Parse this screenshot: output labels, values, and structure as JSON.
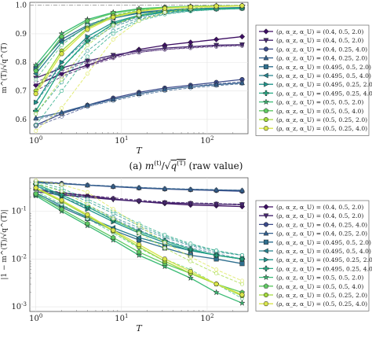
{
  "chart_data": [
    {
      "type": "line",
      "panel": "a",
      "caption": "(a) m^(t)/√q^(T) (raw value)",
      "ylabel": "m^(T)/√q^(T)",
      "xlabel": "T",
      "xscale": "log",
      "xlim": [
        0.85,
        300
      ],
      "ylim": [
        0.55,
        1.01
      ],
      "xticks": [
        {
          "v": 1,
          "label": "10^0"
        },
        {
          "v": 10,
          "label": "10^1"
        },
        {
          "v": 100,
          "label": "10^2"
        }
      ],
      "yticks": [
        0.6,
        0.7,
        0.8,
        0.9,
        1.0
      ],
      "ref_line": 1.0,
      "grid": true,
      "x": [
        1,
        2,
        4,
        8,
        16,
        32,
        64,
        128,
        256
      ],
      "series": [
        {
          "name": "(ρ, α_z, α_U) = (0.4, 0.5, 2.0)",
          "solid": [
            0.72,
            0.76,
            0.79,
            0.82,
            0.845,
            0.86,
            0.87,
            0.88,
            0.89
          ],
          "dashed": [
            0.7,
            0.75,
            0.785,
            0.815,
            0.835,
            0.845,
            0.852,
            0.857,
            0.86
          ]
        },
        {
          "name": "(ρ, α_z, α_U) = (0.4, 0.5, 2.0)",
          "solid": [
            0.745,
            0.78,
            0.805,
            0.825,
            0.84,
            0.85,
            0.855,
            0.86,
            0.862
          ],
          "dashed": [
            0.73,
            0.77,
            0.8,
            0.82,
            0.835,
            0.845,
            0.85,
            0.855,
            0.858
          ]
        },
        {
          "name": "(ρ, α_z, α_U) = (0.4, 0.25, 4.0)",
          "solid": [
            0.58,
            0.62,
            0.65,
            0.675,
            0.695,
            0.71,
            0.72,
            0.73,
            0.74
          ],
          "dashed": [
            0.575,
            0.61,
            0.645,
            0.67,
            0.69,
            0.705,
            0.715,
            0.725,
            0.732
          ]
        },
        {
          "name": "(ρ, α_z, α_U) = (0.4, 0.25, 2.0)",
          "solid": [
            0.605,
            0.625,
            0.65,
            0.67,
            0.69,
            0.705,
            0.715,
            0.722,
            0.728
          ],
          "dashed": [
            0.6,
            0.62,
            0.645,
            0.665,
            0.685,
            0.7,
            0.71,
            0.718,
            0.725
          ]
        },
        {
          "name": "(ρ, α_z, α_U) = (0.495, 0.5, 2.0)",
          "solid": [
            0.78,
            0.88,
            0.93,
            0.96,
            0.975,
            0.983,
            0.988,
            0.99,
            0.992
          ],
          "dashed": [
            0.7,
            0.8,
            0.88,
            0.93,
            0.96,
            0.975,
            0.983,
            0.987,
            0.99
          ]
        },
        {
          "name": "(ρ, α_z, α_U) = (0.495, 0.5, 4.0)",
          "solid": [
            0.76,
            0.87,
            0.925,
            0.955,
            0.972,
            0.98,
            0.985,
            0.988,
            0.99
          ],
          "dashed": [
            0.66,
            0.78,
            0.87,
            0.925,
            0.955,
            0.972,
            0.981,
            0.986,
            0.988
          ]
        },
        {
          "name": "(ρ, α_z, α_U) = (0.495, 0.25, 2.0)",
          "solid": [
            0.66,
            0.8,
            0.89,
            0.94,
            0.965,
            0.978,
            0.985,
            0.988,
            0.99
          ],
          "dashed": [
            0.62,
            0.73,
            0.84,
            0.91,
            0.95,
            0.97,
            0.98,
            0.985,
            0.988
          ]
        },
        {
          "name": "(ρ, α_z, α_U) = (0.495, 0.25, 4.0)",
          "solid": [
            0.63,
            0.78,
            0.875,
            0.935,
            0.962,
            0.976,
            0.984,
            0.988,
            0.99
          ],
          "dashed": [
            0.58,
            0.7,
            0.82,
            0.9,
            0.945,
            0.968,
            0.979,
            0.985,
            0.988
          ]
        },
        {
          "name": "(ρ, α_z, α_U) = (0.5, 0.5, 2.0)",
          "solid": [
            0.79,
            0.9,
            0.95,
            0.975,
            0.988,
            0.993,
            0.996,
            0.998,
            0.998
          ],
          "dashed": [
            0.74,
            0.86,
            0.93,
            0.965,
            0.983,
            0.991,
            0.995,
            0.997,
            0.998
          ]
        },
        {
          "name": "(ρ, α_z, α_U) = (0.5, 0.5, 4.0)",
          "solid": [
            0.77,
            0.89,
            0.945,
            0.972,
            0.986,
            0.992,
            0.995,
            0.997,
            0.998
          ],
          "dashed": [
            0.7,
            0.84,
            0.92,
            0.96,
            0.98,
            0.99,
            0.994,
            0.996,
            0.998
          ]
        },
        {
          "name": "(ρ, α_z, α_U) = (0.5, 0.25, 2.0)",
          "solid": [
            0.7,
            0.84,
            0.92,
            0.962,
            0.98,
            0.99,
            0.995,
            0.997,
            0.998
          ],
          "dashed": [
            0.62,
            0.74,
            0.86,
            0.93,
            0.965,
            0.983,
            0.991,
            0.995,
            0.997
          ]
        },
        {
          "name": "(ρ, α_z, α_U) = (0.5, 0.25, 4.0)",
          "solid": [
            0.69,
            0.83,
            0.915,
            0.958,
            0.978,
            0.989,
            0.994,
            0.997,
            0.998
          ],
          "dashed": [
            0.56,
            0.64,
            0.76,
            0.88,
            0.945,
            0.975,
            0.988,
            0.994,
            0.997
          ]
        }
      ]
    },
    {
      "type": "line",
      "panel": "b",
      "ylabel": "|1 − m^(T)/√q^(T)|",
      "xlabel": "T",
      "xscale": "log",
      "yscale": "log",
      "xlim": [
        0.85,
        300
      ],
      "ylim": [
        0.0008,
        0.5
      ],
      "xticks": [
        {
          "v": 1,
          "label": "10^0"
        },
        {
          "v": 10,
          "label": "10^1"
        },
        {
          "v": 100,
          "label": "10^2"
        }
      ],
      "yticks": [
        {
          "v": 0.001,
          "label": "10^-3"
        },
        {
          "v": 0.01,
          "label": "10^-2"
        },
        {
          "v": 0.1,
          "label": "10^-1"
        }
      ],
      "grid": true,
      "x": [
        1,
        2,
        4,
        8,
        16,
        32,
        64,
        128,
        256
      ],
      "series": [
        {
          "name": "(ρ, α_z, α_U) = (0.4, 0.5, 2.0)",
          "solid": [
            0.28,
            0.24,
            0.21,
            0.18,
            0.16,
            0.145,
            0.135,
            0.13,
            0.125
          ],
          "dashed": [
            0.29,
            0.25,
            0.215,
            0.19,
            0.17,
            0.155,
            0.145,
            0.14,
            0.135
          ]
        },
        {
          "name": "(ρ, α_z, α_U) = (0.4, 0.5, 2.0)",
          "solid": [
            0.255,
            0.22,
            0.195,
            0.175,
            0.16,
            0.15,
            0.145,
            0.14,
            0.138
          ],
          "dashed": [
            0.27,
            0.23,
            0.2,
            0.18,
            0.165,
            0.155,
            0.15,
            0.145,
            0.14
          ]
        },
        {
          "name": "(ρ, α_z, α_U) = (0.4, 0.25, 4.0)",
          "solid": [
            0.42,
            0.38,
            0.35,
            0.325,
            0.305,
            0.29,
            0.28,
            0.27,
            0.26
          ],
          "dashed": [
            0.425,
            0.39,
            0.355,
            0.33,
            0.31,
            0.295,
            0.285,
            0.275,
            0.268
          ]
        },
        {
          "name": "(ρ, α_z, α_U) = (0.4, 0.25, 2.0)",
          "solid": [
            0.395,
            0.375,
            0.35,
            0.33,
            0.31,
            0.295,
            0.285,
            0.278,
            0.272
          ],
          "dashed": [
            0.4,
            0.38,
            0.355,
            0.335,
            0.315,
            0.3,
            0.29,
            0.282,
            0.275
          ]
        },
        {
          "name": "(ρ, α_z, α_U) = (0.495, 0.5, 2.0)",
          "solid": [
            0.22,
            0.12,
            0.07,
            0.04,
            0.025,
            0.017,
            0.012,
            0.01,
            0.008
          ],
          "dashed": [
            0.3,
            0.2,
            0.12,
            0.07,
            0.04,
            0.025,
            0.017,
            0.013,
            0.01
          ]
        },
        {
          "name": "(ρ, α_z, α_U) = (0.495, 0.5, 4.0)",
          "solid": [
            0.24,
            0.13,
            0.075,
            0.045,
            0.028,
            0.02,
            0.015,
            0.012,
            0.01
          ],
          "dashed": [
            0.34,
            0.22,
            0.13,
            0.075,
            0.045,
            0.028,
            0.019,
            0.014,
            0.012
          ]
        },
        {
          "name": "(ρ, α_z, α_U) = (0.495, 0.25, 2.0)",
          "solid": [
            0.34,
            0.2,
            0.11,
            0.06,
            0.035,
            0.022,
            0.015,
            0.012,
            0.01
          ],
          "dashed": [
            0.38,
            0.27,
            0.16,
            0.09,
            0.05,
            0.03,
            0.02,
            0.015,
            0.012
          ]
        },
        {
          "name": "(ρ, α_z, α_U) = (0.495, 0.25, 4.0)",
          "solid": [
            0.37,
            0.22,
            0.125,
            0.065,
            0.038,
            0.024,
            0.016,
            0.012,
            0.01
          ],
          "dashed": [
            0.42,
            0.3,
            0.18,
            0.1,
            0.055,
            0.032,
            0.021,
            0.015,
            0.012
          ]
        },
        {
          "name": "(ρ, α_z, α_U) = (0.5, 0.5, 2.0)",
          "solid": [
            0.21,
            0.1,
            0.05,
            0.025,
            0.012,
            0.007,
            0.004,
            0.002,
            0.0012
          ],
          "dashed": [
            0.26,
            0.14,
            0.07,
            0.035,
            0.017,
            0.009,
            0.005,
            0.003,
            0.0015
          ]
        },
        {
          "name": "(ρ, α_z, α_U) = (0.5, 0.5, 4.0)",
          "solid": [
            0.23,
            0.11,
            0.055,
            0.028,
            0.014,
            0.008,
            0.005,
            0.003,
            0.002
          ],
          "dashed": [
            0.3,
            0.16,
            0.08,
            0.04,
            0.02,
            0.01,
            0.006,
            0.003,
            0.0018
          ]
        },
        {
          "name": "(ρ, α_z, α_U) = (0.5, 0.25, 2.0)",
          "solid": [
            0.3,
            0.16,
            0.08,
            0.038,
            0.018,
            0.009,
            0.005,
            0.003,
            0.0017
          ],
          "dashed": [
            0.38,
            0.26,
            0.14,
            0.07,
            0.035,
            0.017,
            0.009,
            0.005,
            0.003
          ]
        },
        {
          "name": "(ρ, α_z, α_U) = (0.5, 0.25, 4.0)",
          "solid": [
            0.31,
            0.17,
            0.085,
            0.04,
            0.02,
            0.01,
            0.0055,
            0.003,
            0.0018
          ],
          "dashed": [
            0.44,
            0.36,
            0.25,
            0.11,
            0.05,
            0.022,
            0.011,
            0.006,
            0.0035
          ]
        }
      ]
    }
  ],
  "series_colors": [
    "#3d0f63",
    "#45256f",
    "#3b4a8a",
    "#335f8d",
    "#2f6f8f",
    "#26828e",
    "#1f948c",
    "#23a983",
    "#3bbb75",
    "#5ec962",
    "#a2d93c",
    "#d9e54a"
  ],
  "series_markers": [
    "diamond",
    "triangle-down",
    "circle",
    "triangle-up",
    "square",
    "triangle-left",
    "triangle-right",
    "plus",
    "star",
    "pentagon",
    "circle",
    "hexagon"
  ]
}
